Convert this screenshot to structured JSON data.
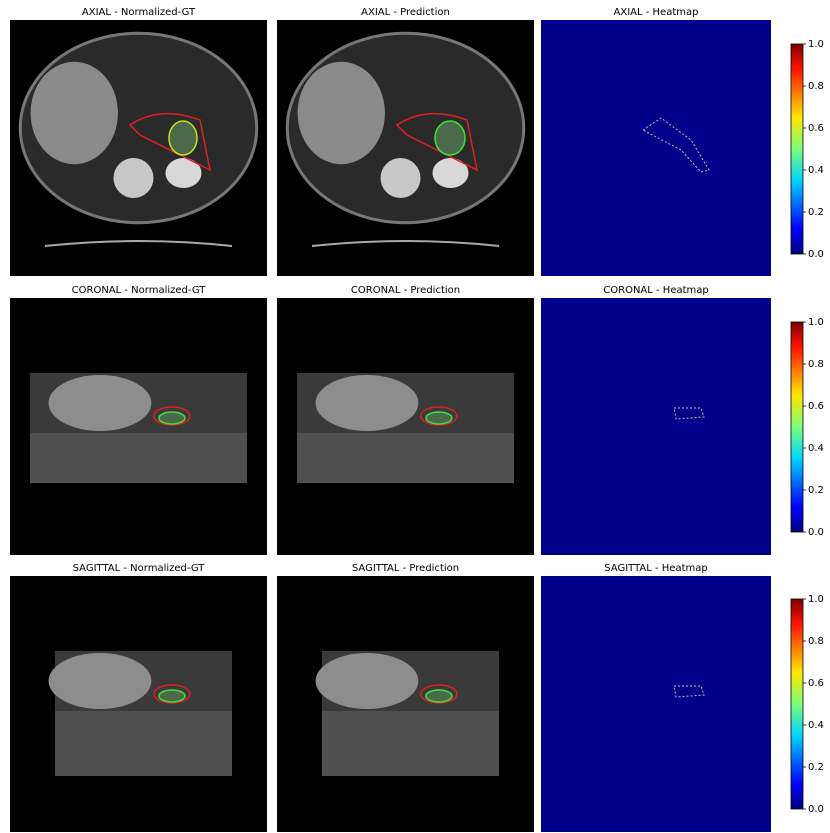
{
  "rows": [
    {
      "panels": [
        "AXIAL - Normalized-GT",
        "AXIAL - Prediction",
        "AXIAL - Heatmap"
      ]
    },
    {
      "panels": [
        "CORONAL - Normalized-GT",
        "CORONAL - Prediction",
        "CORONAL - Heatmap"
      ]
    },
    {
      "panels": [
        "SAGITTAL - Normalized-GT",
        "SAGITTAL - Prediction",
        "SAGITTAL - Heatmap"
      ]
    }
  ],
  "colorbar": {
    "ylim": [
      0,
      1
    ],
    "yticks": [
      {
        "value": 0,
        "label": "0.0"
      },
      {
        "value": 0.2,
        "label": "0.2"
      },
      {
        "value": 0.4,
        "label": "0.4"
      },
      {
        "value": 0.6,
        "label": "0.6"
      },
      {
        "value": 0.8,
        "label": "0.8"
      },
      {
        "value": 1,
        "label": "1.0"
      }
    ]
  }
}
